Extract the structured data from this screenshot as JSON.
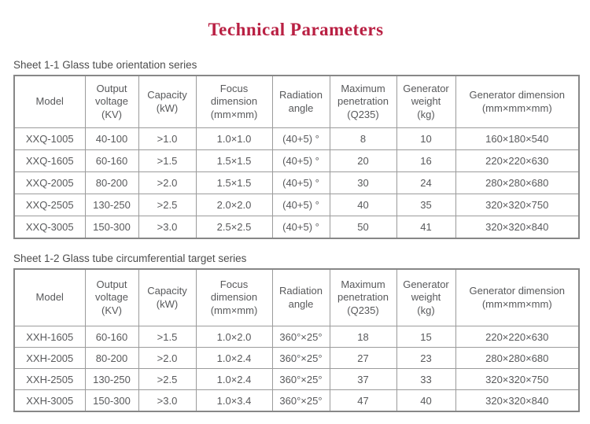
{
  "page": {
    "title": "Technical Parameters",
    "title_color": "#b92043",
    "body_text_color": "#58595b",
    "table_border_color": "#9b9b9b"
  },
  "tables": [
    {
      "caption": "Sheet 1-1 Glass tube orientation series",
      "headers": [
        "Model",
        "Output\nvoltage\n(KV)",
        "Capacity\n(kW)",
        "Focus\ndimension\n(mm×mm)",
        "Radiation\nangle",
        "Maximum\npenetration\n(Q235)",
        "Generator\nweight\n(kg)",
        "Generator dimension\n(mm×mm×mm)"
      ],
      "rows": [
        [
          "XXQ-1005",
          "40-100",
          ">1.0",
          "1.0×1.0",
          "(40+5) °",
          "8",
          "10",
          "160×180×540"
        ],
        [
          "XXQ-1605",
          "60-160",
          ">1.5",
          "1.5×1.5",
          "(40+5) °",
          "20",
          "16",
          "220×220×630"
        ],
        [
          "XXQ-2005",
          "80-200",
          ">2.0",
          "1.5×1.5",
          "(40+5) °",
          "30",
          "24",
          "280×280×680"
        ],
        [
          "XXQ-2505",
          "130-250",
          ">2.5",
          "2.0×2.0",
          "(40+5) °",
          "40",
          "35",
          "320×320×750"
        ],
        [
          "XXQ-3005",
          "150-300",
          ">3.0",
          "2.5×2.5",
          "(40+5) °",
          "50",
          "41",
          "320×320×840"
        ]
      ]
    },
    {
      "caption": "Sheet 1-2 Glass tube circumferential target series",
      "headers": [
        "Model",
        "Output\nvoltage\n(KV)",
        "Capacity\n(kW)",
        "Focus\ndimension\n(mm×mm)",
        "Radiation\nangle",
        "Maximum\npenetration\n(Q235)",
        "Generator\nweight\n(kg)",
        "Generator dimension\n(mm×mm×mm)"
      ],
      "rows": [
        [
          "XXH-1605",
          "60-160",
          ">1.5",
          "1.0×2.0",
          "360°×25°",
          "18",
          "15",
          "220×220×630"
        ],
        [
          "XXH-2005",
          "80-200",
          ">2.0",
          "1.0×2.4",
          "360°×25°",
          "27",
          "23",
          "280×280×680"
        ],
        [
          "XXH-2505",
          "130-250",
          ">2.5",
          "1.0×2.4",
          "360°×25°",
          "37",
          "33",
          "320×320×750"
        ],
        [
          "XXH-3005",
          "150-300",
          ">3.0",
          "1.0×3.4",
          "360°×25°",
          "47",
          "40",
          "320×320×840"
        ]
      ]
    }
  ]
}
